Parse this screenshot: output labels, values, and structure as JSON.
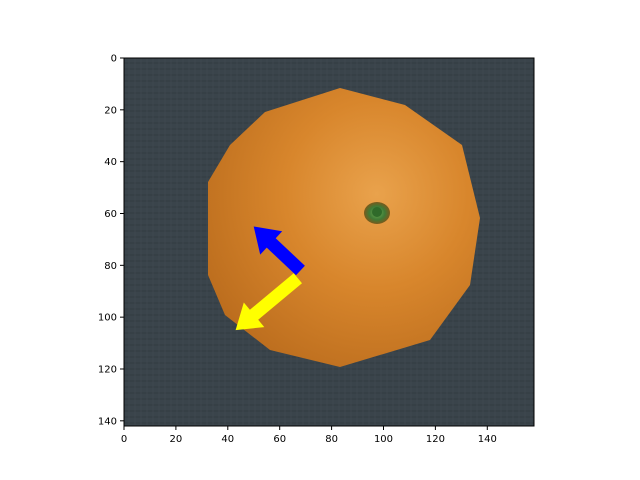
{
  "figure": {
    "x_axis": {
      "ticks": [
        0,
        20,
        40,
        60,
        80,
        100,
        120,
        140
      ],
      "range": [
        0,
        158
      ]
    },
    "y_axis": {
      "ticks": [
        0,
        20,
        40,
        60,
        80,
        100,
        120,
        140
      ],
      "range": [
        0,
        142
      ],
      "inverted": true
    },
    "image": {
      "subject": "orange-fruit-top-view",
      "background_color": "#3a444b",
      "fruit_color": "#d48a2c",
      "stem_color": "#3f7a36"
    },
    "arrows": [
      {
        "name": "blue-arrow",
        "color": "#0000ff",
        "from": [
          68,
          82
        ],
        "to": [
          50,
          65
        ]
      },
      {
        "name": "yellow-arrow",
        "color": "#ffff00",
        "from": [
          67,
          85
        ],
        "to": [
          43,
          105
        ]
      }
    ]
  }
}
